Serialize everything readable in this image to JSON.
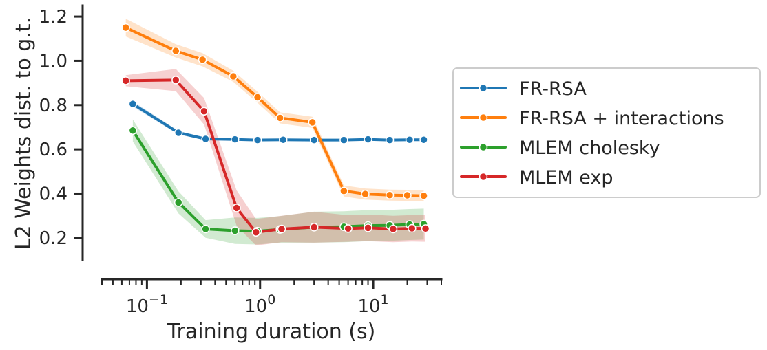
{
  "chart_data": {
    "type": "line",
    "xlabel": "Training duration (s)",
    "ylabel": "L2 Weights dist. to g.t.",
    "x_scale": "log",
    "xlim": [
      0.04,
      40
    ],
    "ylim": [
      0.1,
      1.25
    ],
    "y_ticks": [
      0.2,
      0.4,
      0.6,
      0.8,
      1.0,
      1.2
    ],
    "y_tick_labels": [
      "0.2",
      "0.4",
      "0.6",
      "0.8",
      "1.0",
      "1.2"
    ],
    "x_ticks": [
      {
        "value": 0.1,
        "base": "10",
        "exp": "−1"
      },
      {
        "value": 1,
        "base": "10",
        "exp": "0"
      },
      {
        "value": 10,
        "base": "10",
        "exp": "1"
      }
    ],
    "grid": false,
    "legend_position": "outside-right",
    "series": [
      {
        "name": "FR-RSA",
        "color": "#1f77b4",
        "x": [
          0.075,
          0.19,
          0.33,
          0.6,
          0.95,
          1.6,
          3.0,
          5.5,
          9.0,
          14,
          21,
          28
        ],
        "y": [
          0.805,
          0.675,
          0.647,
          0.645,
          0.642,
          0.643,
          0.642,
          0.642,
          0.645,
          0.642,
          0.643,
          0.643
        ],
        "band": [
          0.012,
          0.008,
          0.006,
          0.005,
          0.005,
          0.005,
          0.005,
          0.005,
          0.005,
          0.005,
          0.005,
          0.005
        ]
      },
      {
        "name": "FR-RSA + interactions",
        "color": "#ff7f0e",
        "x": [
          0.065,
          0.18,
          0.31,
          0.58,
          0.95,
          1.5,
          2.9,
          5.5,
          8.5,
          14,
          20,
          28
        ],
        "y": [
          1.15,
          1.045,
          1.005,
          0.93,
          0.835,
          0.742,
          0.722,
          0.412,
          0.398,
          0.393,
          0.392,
          0.39
        ],
        "band": [
          0.04,
          0.03,
          0.03,
          0.025,
          0.025,
          0.025,
          0.025,
          0.025,
          0.025,
          0.025,
          0.025,
          0.025
        ]
      },
      {
        "name": "MLEM cholesky",
        "color": "#2ca02c",
        "x": [
          0.075,
          0.19,
          0.33,
          0.6,
          0.95,
          1.5,
          3.0,
          5.5,
          9.0,
          14,
          21,
          28
        ],
        "y": [
          0.685,
          0.36,
          0.24,
          0.232,
          0.23,
          0.238,
          0.248,
          0.25,
          0.255,
          0.256,
          0.26,
          0.262
        ],
        "band": [
          0.05,
          0.05,
          0.04,
          0.06,
          0.06,
          0.06,
          0.07,
          0.07,
          0.07,
          0.07,
          0.07,
          0.07
        ]
      },
      {
        "name": "MLEM exp",
        "color": "#d62728",
        "x": [
          0.065,
          0.18,
          0.32,
          0.62,
          0.92,
          1.55,
          3.0,
          6.0,
          9.0,
          15,
          22,
          29
        ],
        "y": [
          0.91,
          0.913,
          0.772,
          0.335,
          0.225,
          0.24,
          0.248,
          0.242,
          0.245,
          0.24,
          0.243,
          0.242
        ],
        "band": [
          0.025,
          0.05,
          0.06,
          0.08,
          0.06,
          0.06,
          0.07,
          0.06,
          0.06,
          0.06,
          0.06,
          0.06
        ]
      }
    ]
  }
}
